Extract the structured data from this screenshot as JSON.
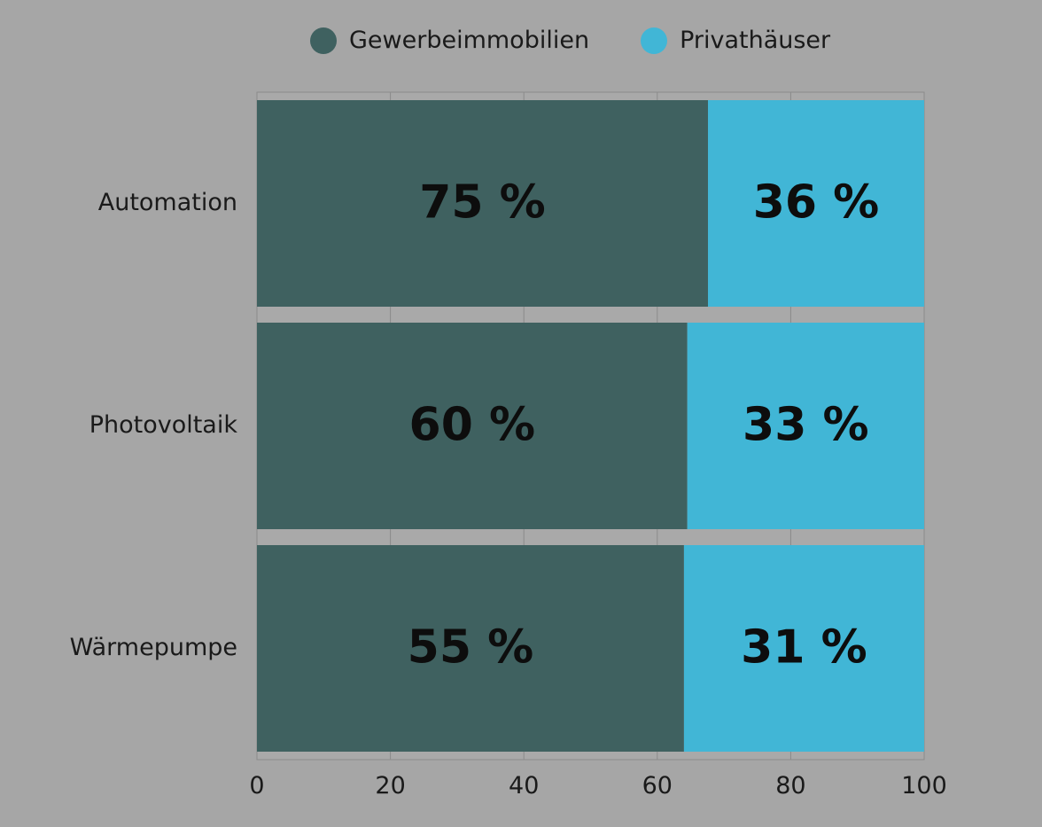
{
  "legend": {
    "position": "top-center",
    "items": [
      {
        "label": "Gewerbeimmobilien",
        "color": "#3f6160"
      },
      {
        "label": "Privathäuser",
        "color": "#41b6d6"
      }
    ]
  },
  "chart_data": {
    "type": "bar",
    "orientation": "horizontal",
    "stacked": true,
    "title": "",
    "xlabel": "",
    "ylabel": "",
    "categories": [
      "Automation",
      "Photovoltaik",
      "Wärmepumpe"
    ],
    "series": [
      {
        "name": "Gewerbeimmobilien",
        "color": "#3f6160",
        "values": [
          67.6,
          64.5,
          64.0
        ],
        "data_labels": [
          "75 %",
          "60 %",
          "55 %"
        ]
      },
      {
        "name": "Privathäuser",
        "color": "#41b6d6",
        "values": [
          32.4,
          35.5,
          36.0
        ],
        "data_labels": [
          "36 %",
          "33 %",
          "31 %"
        ]
      }
    ],
    "xlim": [
      0,
      100
    ],
    "xticks": [
      0,
      20,
      40,
      60,
      80,
      100
    ],
    "grid": true
  }
}
